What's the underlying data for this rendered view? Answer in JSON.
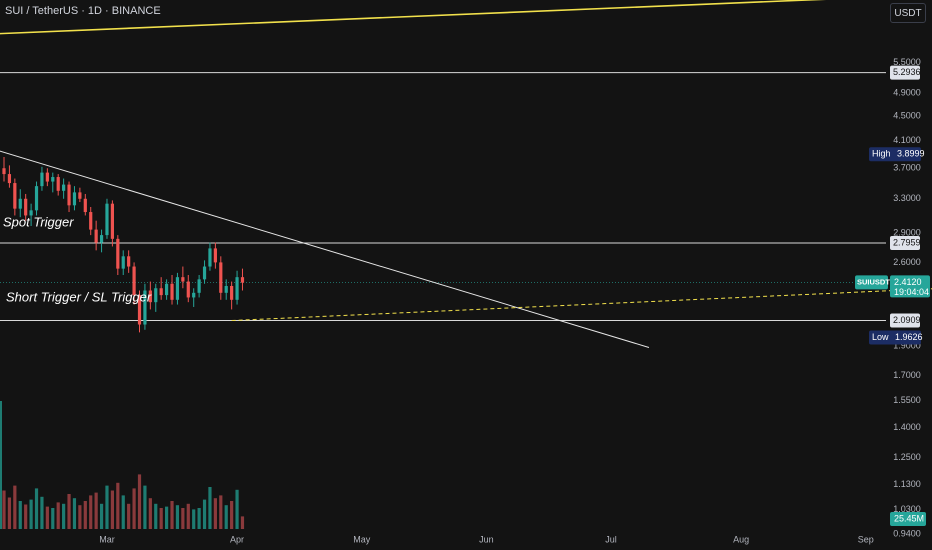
{
  "header": {
    "title": "SUI / TetherUS · 1D · BINANCE",
    "currency": "USDT"
  },
  "colors": {
    "up": "#26a69a",
    "down": "#ef5350",
    "upVol": "#1e7c72",
    "downVol": "#8a3a3c",
    "yellow": "#f2e14c",
    "white": "#e6e6e6",
    "bg": "#131313",
    "axisText": "#b2b5be"
  },
  "annotations": {
    "spot_trigger": "Spot Trigger",
    "short_trigger": "Short Trigger / SL Trigger"
  },
  "chart_data": {
    "type": "candlestick",
    "y_scale": "log",
    "ylim": [
      0.885,
      6.95
    ],
    "price_ticks": [
      "5.5000",
      "4.9000",
      "4.5000",
      "4.1000",
      "3.7000",
      "3.3000",
      "2.9000",
      "2.6000",
      "1.9000",
      "1.7000",
      "1.5500",
      "1.4000",
      "1.2500",
      "1.1300",
      "1.0300",
      "0.9400"
    ],
    "x_ticks": [
      "Mar",
      "Apr",
      "May",
      "Jun",
      "Jul",
      "Aug",
      "Sep"
    ],
    "badges": {
      "resistance_top": "5.2936",
      "high_label": "High",
      "high_value": "3.8999",
      "spot_level": "2.7959",
      "symbol": "SUIUSDT",
      "last_price": "2.4120",
      "countdown": "19:04:04",
      "support_level": "2.0909",
      "low_label": "Low",
      "low_value": "1.9626",
      "volume": "25.45M"
    },
    "levels": [
      5.2936,
      2.7959,
      2.0909
    ],
    "candles_ohlc": [
      [
        3.7,
        3.86,
        3.52,
        3.62
      ],
      [
        3.62,
        3.74,
        3.44,
        3.5
      ],
      [
        3.5,
        3.56,
        3.1,
        3.18
      ],
      [
        3.18,
        3.42,
        3.08,
        3.3
      ],
      [
        3.3,
        3.36,
        3.04,
        3.1
      ],
      [
        3.1,
        3.24,
        2.98,
        3.16
      ],
      [
        3.16,
        3.52,
        3.1,
        3.46
      ],
      [
        3.46,
        3.72,
        3.4,
        3.64
      ],
      [
        3.64,
        3.7,
        3.46,
        3.52
      ],
      [
        3.52,
        3.64,
        3.38,
        3.58
      ],
      [
        3.58,
        3.62,
        3.34,
        3.4
      ],
      [
        3.4,
        3.56,
        3.3,
        3.48
      ],
      [
        3.48,
        3.52,
        3.14,
        3.22
      ],
      [
        3.22,
        3.46,
        3.16,
        3.38
      ],
      [
        3.38,
        3.44,
        3.26,
        3.3
      ],
      [
        3.3,
        3.36,
        3.1,
        3.14
      ],
      [
        3.14,
        3.2,
        2.88,
        2.94
      ],
      [
        2.94,
        3.04,
        2.72,
        2.8
      ],
      [
        2.8,
        2.94,
        2.7,
        2.88
      ],
      [
        2.88,
        3.3,
        2.84,
        3.24
      ],
      [
        3.24,
        3.28,
        2.76,
        2.84
      ],
      [
        2.84,
        2.88,
        2.48,
        2.54
      ],
      [
        2.54,
        2.72,
        2.48,
        2.66
      ],
      [
        2.66,
        2.72,
        2.5,
        2.56
      ],
      [
        2.56,
        2.6,
        2.22,
        2.3
      ],
      [
        2.3,
        2.34,
        2.0,
        2.06
      ],
      [
        2.06,
        2.4,
        2.02,
        2.34
      ],
      [
        2.34,
        2.42,
        2.18,
        2.24
      ],
      [
        2.24,
        2.4,
        2.16,
        2.36
      ],
      [
        2.36,
        2.46,
        2.26,
        2.3
      ],
      [
        2.3,
        2.44,
        2.26,
        2.4
      ],
      [
        2.4,
        2.48,
        2.22,
        2.26
      ],
      [
        2.26,
        2.5,
        2.22,
        2.46
      ],
      [
        2.46,
        2.56,
        2.36,
        2.42
      ],
      [
        2.42,
        2.48,
        2.24,
        2.28
      ],
      [
        2.28,
        2.36,
        2.2,
        2.32
      ],
      [
        2.32,
        2.48,
        2.28,
        2.44
      ],
      [
        2.44,
        2.62,
        2.4,
        2.56
      ],
      [
        2.56,
        2.8,
        2.52,
        2.74
      ],
      [
        2.74,
        2.8,
        2.54,
        2.6
      ],
      [
        2.6,
        2.66,
        2.26,
        2.32
      ],
      [
        2.32,
        2.44,
        2.26,
        2.38
      ],
      [
        2.38,
        2.42,
        2.18,
        2.26
      ],
      [
        2.26,
        2.52,
        2.22,
        2.46
      ],
      [
        2.46,
        2.54,
        2.34,
        2.41
      ]
    ],
    "volume_rel": [
      0.55,
      0.45,
      0.62,
      0.4,
      0.35,
      0.42,
      0.58,
      0.46,
      0.32,
      0.3,
      0.38,
      0.36,
      0.5,
      0.44,
      0.34,
      0.4,
      0.48,
      0.52,
      0.36,
      0.62,
      0.55,
      0.66,
      0.48,
      0.36,
      0.58,
      0.78,
      0.62,
      0.44,
      0.36,
      0.3,
      0.32,
      0.4,
      0.34,
      0.3,
      0.36,
      0.28,
      0.3,
      0.42,
      0.6,
      0.44,
      0.48,
      0.34,
      0.4,
      0.56,
      0.18
    ],
    "volume_spike_rel": 2.0,
    "trendlines": [
      {
        "name": "top-yellow",
        "style": "solid",
        "color": "yellow",
        "from": [
          -6,
          6.1
        ],
        "to": [
          160,
          7.02
        ]
      },
      {
        "name": "bottom-yellow",
        "style": "solid",
        "color": "yellow",
        "from": [
          189,
          0.827
        ],
        "to": [
          295,
          0.911
        ]
      },
      {
        "name": "descending-white",
        "style": "solid",
        "color": "white",
        "from": [
          -5,
          4.05
        ],
        "to": [
          119,
          1.89
        ]
      },
      {
        "name": "dashed-support",
        "style": "dashed",
        "color": "yellow",
        "from": [
          42,
          2.0909
        ],
        "to": [
          295,
          2.64
        ]
      }
    ]
  }
}
